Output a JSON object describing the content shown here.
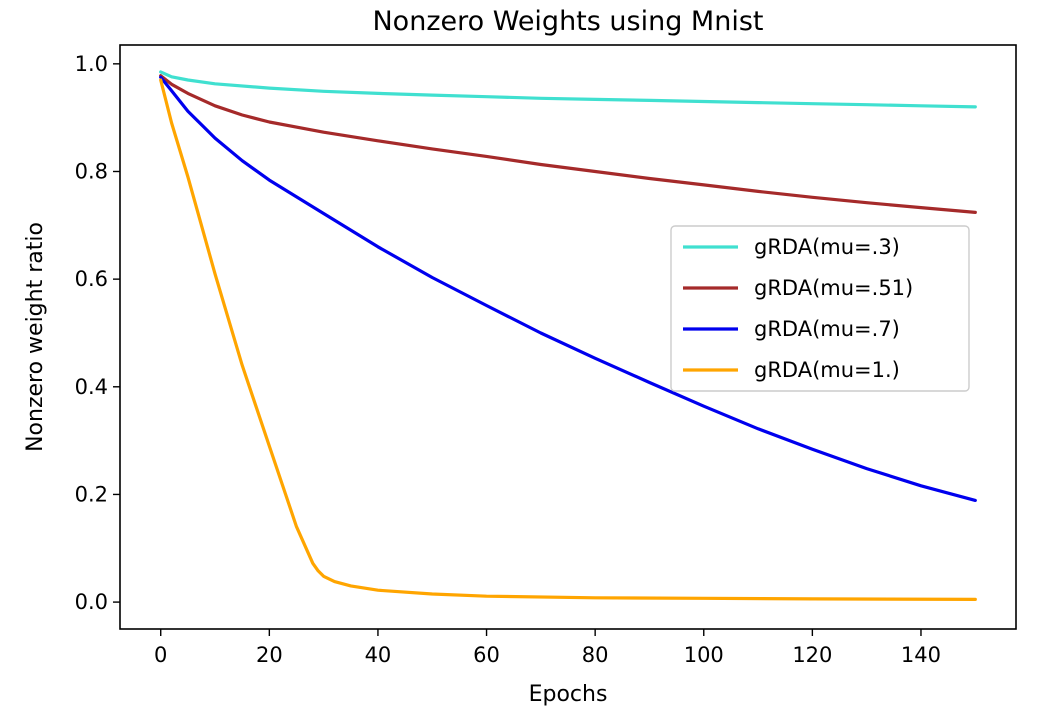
{
  "chart_data": {
    "type": "line",
    "title": "Nonzero Weights using Mnist",
    "xlabel": "Epochs",
    "ylabel": "Nonzero weight ratio",
    "xlim": [
      -7.5,
      157.5
    ],
    "ylim": [
      -0.05,
      1.035
    ],
    "xticks": [
      0,
      20,
      40,
      60,
      80,
      100,
      120,
      140
    ],
    "yticks": [
      0.0,
      0.2,
      0.4,
      0.6,
      0.8,
      1.0
    ],
    "xtick_labels": [
      "0",
      "20",
      "40",
      "60",
      "80",
      "100",
      "120",
      "140"
    ],
    "ytick_labels": [
      "0.0",
      "0.2",
      "0.4",
      "0.6",
      "0.8",
      "1.0"
    ],
    "grid": false,
    "legend_position": "center-right",
    "series": [
      {
        "name": "gRDA(mu=.3)",
        "color": "#40e0d0",
        "x": [
          0,
          2,
          5,
          10,
          20,
          30,
          40,
          50,
          60,
          70,
          80,
          90,
          100,
          110,
          120,
          130,
          140,
          150
        ],
        "y": [
          0.985,
          0.976,
          0.97,
          0.963,
          0.955,
          0.949,
          0.945,
          0.942,
          0.939,
          0.936,
          0.934,
          0.932,
          0.93,
          0.928,
          0.926,
          0.924,
          0.922,
          0.92
        ]
      },
      {
        "name": "gRDA(mu=.51)",
        "color": "#a52a2a",
        "x": [
          0,
          2,
          5,
          10,
          15,
          20,
          30,
          40,
          50,
          60,
          70,
          80,
          90,
          100,
          110,
          120,
          130,
          140,
          150
        ],
        "y": [
          0.978,
          0.962,
          0.945,
          0.922,
          0.905,
          0.892,
          0.873,
          0.857,
          0.842,
          0.828,
          0.813,
          0.8,
          0.787,
          0.775,
          0.763,
          0.752,
          0.742,
          0.733,
          0.724
        ]
      },
      {
        "name": "gRDA(mu=.7)",
        "color": "#0000ee",
        "x": [
          0,
          2,
          5,
          10,
          15,
          20,
          30,
          40,
          50,
          60,
          70,
          80,
          90,
          100,
          110,
          120,
          130,
          140,
          150
        ],
        "y": [
          0.975,
          0.95,
          0.912,
          0.862,
          0.82,
          0.784,
          0.722,
          0.66,
          0.603,
          0.551,
          0.5,
          0.453,
          0.408,
          0.364,
          0.322,
          0.284,
          0.248,
          0.216,
          0.189
        ]
      },
      {
        "name": "gRDA(mu=1.)",
        "color": "#ffa500",
        "x": [
          0,
          2,
          5,
          10,
          15,
          20,
          25,
          28,
          29,
          30,
          32,
          35,
          40,
          50,
          60,
          80,
          100,
          120,
          150
        ],
        "y": [
          0.97,
          0.89,
          0.79,
          0.61,
          0.44,
          0.29,
          0.14,
          0.072,
          0.058,
          0.048,
          0.038,
          0.03,
          0.022,
          0.015,
          0.011,
          0.008,
          0.007,
          0.006,
          0.005
        ]
      }
    ]
  }
}
